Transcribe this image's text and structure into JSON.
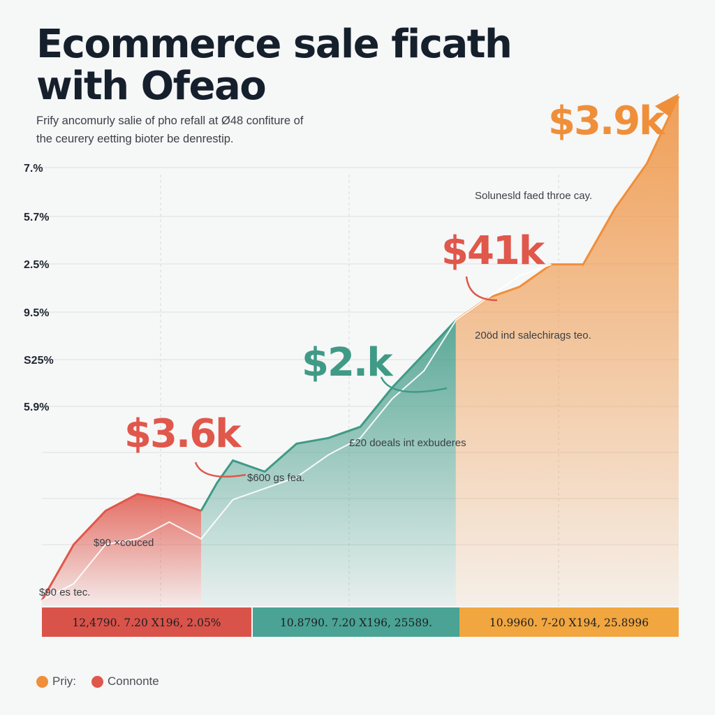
{
  "title_lines": [
    "Ecommerce sale ficath",
    "with Ofeao"
  ],
  "subtitle_lines": [
    "Frify ancomurly salie of pho refall at Ø48 confiture of",
    "the ceurery eetting bioter be denrestip."
  ],
  "colors": {
    "red": "#e0574b",
    "teal": "#3f9a86",
    "orange": "#ef8f3a",
    "bar_red": "#d9534a",
    "bar_teal": "#4aa394",
    "bar_orange": "#f1a63f",
    "title": "#16202c"
  },
  "chart_data": {
    "type": "area",
    "title": "Ecommerce sale ficath with Ofeao",
    "y_tick_labels": [
      "7.%",
      "5.7%",
      "2.5%",
      "9.5%",
      "S25%",
      "5.9%"
    ],
    "grid": true,
    "segments": [
      {
        "name": "red",
        "color_key": "red",
        "points": [
          [
            1,
            0.05
          ],
          [
            2,
            0.55
          ],
          [
            3,
            0.85
          ],
          [
            4,
            1.0
          ],
          [
            5,
            0.95
          ],
          [
            6,
            0.85
          ]
        ]
      },
      {
        "name": "teal",
        "color_key": "teal",
        "points": [
          [
            6,
            0.85
          ],
          [
            6.5,
            1.1
          ],
          [
            7,
            1.3
          ],
          [
            8,
            1.2
          ],
          [
            9,
            1.45
          ],
          [
            10,
            1.5
          ],
          [
            11,
            1.6
          ],
          [
            12,
            1.95
          ],
          [
            13,
            2.25
          ],
          [
            14,
            2.55
          ]
        ]
      },
      {
        "name": "orange",
        "color_key": "orange",
        "points": [
          [
            14,
            2.55
          ],
          [
            15,
            2.75
          ],
          [
            16,
            2.85
          ],
          [
            17,
            3.05
          ],
          [
            18,
            3.05
          ],
          [
            19,
            3.55
          ],
          [
            20,
            3.95
          ],
          [
            21,
            4.55
          ]
        ]
      }
    ],
    "trend_line": [
      [
        1,
        0.05
      ],
      [
        2,
        0.2
      ],
      [
        3,
        0.55
      ],
      [
        4,
        0.6
      ],
      [
        5,
        0.75
      ],
      [
        6,
        0.6
      ],
      [
        7,
        0.95
      ],
      [
        8,
        1.05
      ],
      [
        9,
        1.15
      ],
      [
        10,
        1.35
      ],
      [
        11,
        1.5
      ],
      [
        12,
        1.85
      ],
      [
        13,
        2.1
      ],
      [
        14,
        2.55
      ],
      [
        15,
        2.75
      ],
      [
        16,
        2.95
      ],
      [
        17,
        3.05
      ]
    ],
    "big_labels": [
      {
        "text": "$3.9k",
        "color_key": "orange"
      },
      {
        "text": "$41k",
        "color_key": "red"
      },
      {
        "text": "$2.k",
        "color_key": "teal"
      },
      {
        "text": "$3.6k",
        "color_key": "red"
      }
    ],
    "annotations": [
      "Solunesld faed throe cay.",
      "20öd ind salechirags teo.",
      "£20 doeals int exbuderes",
      "$600 gs fea.",
      "$90 ×couced",
      "$90 es tec."
    ],
    "bottom_bars": [
      {
        "text": "12,4790. 7.20 X196, 2.05%",
        "color_key": "bar_red"
      },
      {
        "text": "10.8790. 7.20 X196, 25589.",
        "color_key": "bar_teal"
      },
      {
        "text": "10.9960. 7-20 X194, 25.8996",
        "color_key": "bar_orange"
      }
    ],
    "legend": [
      {
        "label": "Priy:",
        "color_key": "orange"
      },
      {
        "label": "Connonte",
        "color_key": "red"
      }
    ]
  }
}
